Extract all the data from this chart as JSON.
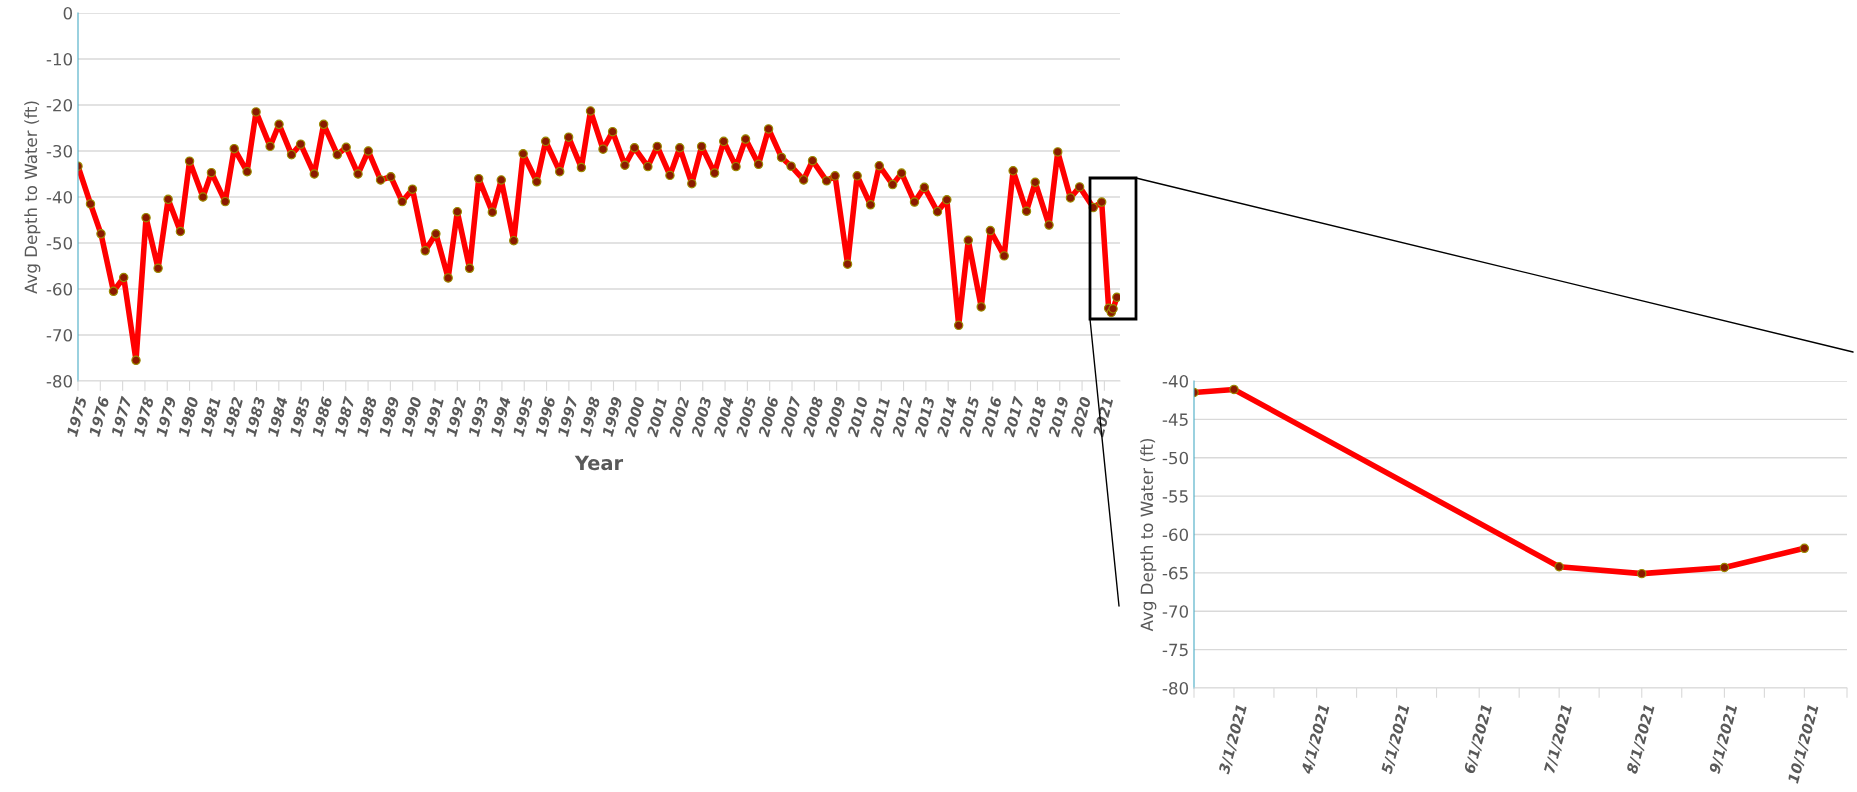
{
  "chart_data": [
    {
      "type": "line",
      "xlabel": "Year",
      "ylabel": "Avg Depth to Water (ft)",
      "marker": "circle",
      "line_style": "solid",
      "grid": "y",
      "x": [
        1975.0,
        1975.56,
        1976.03,
        1976.59,
        1977.05,
        1977.6,
        1978.05,
        1978.59,
        1979.04,
        1979.59,
        1980.0,
        1980.6,
        1980.98,
        1981.6,
        1982.0,
        1982.58,
        1982.98,
        1983.61,
        1984.01,
        1984.57,
        1984.98,
        1985.59,
        1986.01,
        1986.62,
        1987.02,
        1987.55,
        1988.01,
        1988.56,
        1989.02,
        1989.53,
        1989.99,
        1990.56,
        1991.04,
        1991.59,
        1992.0,
        1992.55,
        1992.96,
        1993.57,
        1993.97,
        1994.53,
        1994.95,
        1995.56,
        1995.96,
        1996.59,
        1996.99,
        1997.56,
        1997.97,
        1998.53,
        1998.96,
        1999.51,
        1999.94,
        2000.54,
        2000.96,
        2001.53,
        2001.97,
        2002.51,
        2002.95,
        2003.53,
        2003.94,
        2004.49,
        2004.92,
        2005.5,
        2005.95,
        2006.53,
        2006.96,
        2007.52,
        2007.92,
        2008.55,
        2008.93,
        2009.49,
        2009.92,
        2010.52,
        2010.91,
        2011.51,
        2011.91,
        2012.49,
        2012.93,
        2013.52,
        2013.94,
        2014.47,
        2014.9,
        2015.48,
        2015.89,
        2016.51,
        2016.91,
        2017.51,
        2017.9,
        2018.52,
        2018.91,
        2019.48,
        2019.89,
        2020.5,
        2020.88,
        2021.19,
        2021.31,
        2021.39,
        2021.56
      ],
      "series": [
        {
          "color": "#ff0000",
          "values": [
            -33.3,
            -41.5,
            -48,
            -60.5,
            -57.5,
            -75.5,
            -44.5,
            -55.5,
            -40.5,
            -47.5,
            -32.2,
            -40,
            -34.7,
            -41,
            -29.5,
            -34.5,
            -21.5,
            -29,
            -24.2,
            -30.8,
            -28.5,
            -35,
            -24.2,
            -30.8,
            -29.2,
            -35,
            -30,
            -36.3,
            -35.6,
            -41,
            -38.3,
            -51.7,
            -48,
            -57.6,
            -43.2,
            -55.5,
            -36,
            -43.3,
            -36.3,
            -49.5,
            -30.6,
            -36.7,
            -27.9,
            -34.5,
            -27,
            -33.6,
            -21.3,
            -29.6,
            -25.8,
            -33.1,
            -29.3,
            -33.4,
            -29,
            -35.3,
            -29.3,
            -37.1,
            -29,
            -34.8,
            -27.9,
            -33.4,
            -27.4,
            -32.9,
            -25.2,
            -31.4,
            -33.3,
            -36.3,
            -32.1,
            -36.5,
            -35.4,
            -54.6,
            -35.4,
            -41.7,
            -33.2,
            -37.3,
            -34.8,
            -41.1,
            -37.9,
            -43.2,
            -40.6,
            -67.9,
            -49.4,
            -63.9,
            -47.3,
            -52.8,
            -34.3,
            -43.1,
            -36.8,
            -46.1,
            -30.2,
            -40.2,
            -37.8,
            -42.3,
            -41.1,
            -64.2,
            -65.1,
            -64.3,
            -61.8
          ]
        }
      ],
      "xlim": [
        1975,
        2021.7
      ],
      "ylim": [
        -80,
        0
      ],
      "xticks": [
        1975,
        1976,
        1977,
        1978,
        1979,
        1980,
        1981,
        1982,
        1983,
        1984,
        1985,
        1986,
        1987,
        1988,
        1989,
        1990,
        1991,
        1992,
        1993,
        1994,
        1995,
        1996,
        1997,
        1998,
        1999,
        2000,
        2001,
        2002,
        2003,
        2004,
        2005,
        2006,
        2007,
        2008,
        2009,
        2010,
        2011,
        2012,
        2013,
        2014,
        2015,
        2016,
        2017,
        2018,
        2019,
        2020,
        2021
      ],
      "yticks": [
        -80,
        -70,
        -60,
        -50,
        -40,
        -30,
        -20,
        -10,
        0
      ]
    },
    {
      "type": "line",
      "ylabel": "Avg Depth to Water (ft)",
      "marker": "circle",
      "line_style": "solid",
      "grid": "y",
      "x": [
        "2021-02-14",
        "2021-03-01",
        "2021-07-01",
        "2021-08-01",
        "2021-09-01",
        "2021-10-01"
      ],
      "series": [
        {
          "color": "#ff0000",
          "values": [
            -41.5,
            -41.1,
            -64.2,
            -65.1,
            -64.3,
            -61.8
          ]
        }
      ],
      "xlim": [
        "2021-02-14",
        "2021-10-17"
      ],
      "ylim": [
        -80,
        -40
      ],
      "xticks": [
        {
          "value": "2021-02-14",
          "label": null
        },
        {
          "value": "2021-03-01",
          "label": "3/1/2021"
        },
        {
          "value": "2021-03-16",
          "label": null
        },
        {
          "value": "2021-04-01",
          "label": "4/1/2021"
        },
        {
          "value": "2021-04-16",
          "label": null
        },
        {
          "value": "2021-05-01",
          "label": "5/1/2021"
        },
        {
          "value": "2021-05-16",
          "label": null
        },
        {
          "value": "2021-06-01",
          "label": "6/1/2021"
        },
        {
          "value": "2021-06-16",
          "label": null
        },
        {
          "value": "2021-07-01",
          "label": "7/1/2021"
        },
        {
          "value": "2021-07-16",
          "label": null
        },
        {
          "value": "2021-08-01",
          "label": "8/1/2021"
        },
        {
          "value": "2021-08-16",
          "label": null
        },
        {
          "value": "2021-09-01",
          "label": "9/1/2021"
        },
        {
          "value": "2021-09-16",
          "label": null
        },
        {
          "value": "2021-10-01",
          "label": "10/1/2021"
        },
        {
          "value": "2021-10-17",
          "label": null
        }
      ],
      "yticks": [
        -80,
        -75,
        -70,
        -65,
        -60,
        -55,
        -50,
        -45,
        -40
      ]
    }
  ]
}
